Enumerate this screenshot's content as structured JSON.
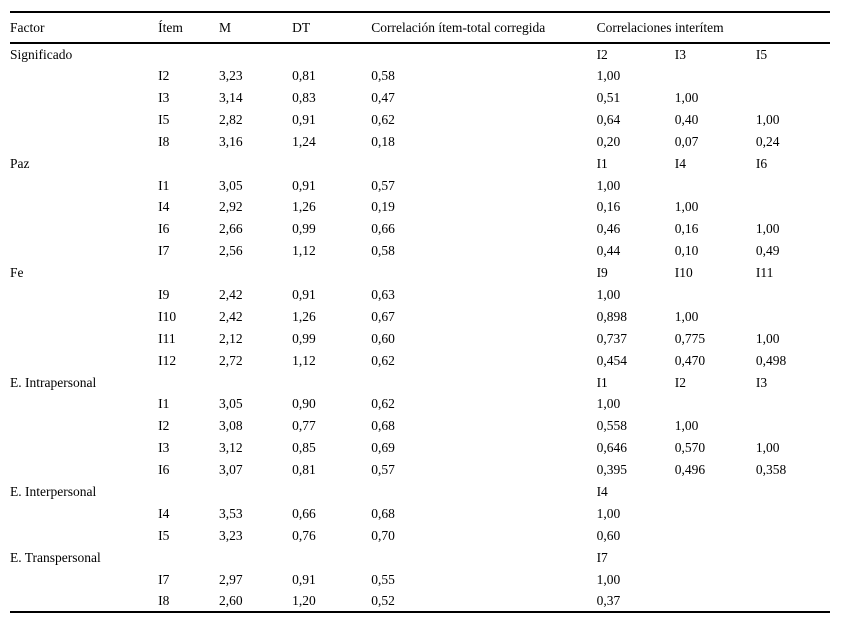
{
  "table": {
    "headers": {
      "factor": "Factor",
      "item": "Ítem",
      "mean": "M",
      "sd": "DT",
      "item_total": "Correlación ítem-total corregida",
      "interitem": "Correlaciones interítem"
    },
    "rows": [
      {
        "type": "section",
        "factor": "Significado",
        "inter": [
          "I2",
          "I3",
          "I5"
        ]
      },
      {
        "type": "item",
        "item": "I2",
        "m": "3,23",
        "dt": "0,81",
        "corr": "0,58",
        "inter": [
          "1,00",
          "",
          ""
        ]
      },
      {
        "type": "item",
        "item": "I3",
        "m": "3,14",
        "dt": "0,83",
        "corr": "0,47",
        "inter": [
          "0,51",
          "1,00",
          ""
        ]
      },
      {
        "type": "item",
        "item": "I5",
        "m": "2,82",
        "dt": "0,91",
        "corr": "0,62",
        "inter": [
          "0,64",
          "0,40",
          "1,00"
        ]
      },
      {
        "type": "item",
        "item": "I8",
        "m": "3,16",
        "dt": "1,24",
        "corr": "0,18",
        "inter": [
          "0,20",
          "0,07",
          "0,24"
        ]
      },
      {
        "type": "section",
        "factor": "Paz",
        "inter": [
          "I1",
          "I4",
          "I6"
        ]
      },
      {
        "type": "item",
        "item": "I1",
        "m": "3,05",
        "dt": "0,91",
        "corr": "0,57",
        "inter": [
          "1,00",
          "",
          ""
        ]
      },
      {
        "type": "item",
        "item": "I4",
        "m": "2,92",
        "dt": "1,26",
        "corr": "0,19",
        "inter": [
          "0,16",
          "1,00",
          ""
        ]
      },
      {
        "type": "item",
        "item": "I6",
        "m": "2,66",
        "dt": "0,99",
        "corr": "0,66",
        "inter": [
          "0,46",
          "0,16",
          "1,00"
        ]
      },
      {
        "type": "item",
        "item": "I7",
        "m": "2,56",
        "dt": "1,12",
        "corr": "0,58",
        "inter": [
          "0,44",
          "0,10",
          "0,49"
        ]
      },
      {
        "type": "section",
        "factor": "Fe",
        "inter": [
          "I9",
          "I10",
          "I11"
        ]
      },
      {
        "type": "item",
        "item": "I9",
        "m": "2,42",
        "dt": "0,91",
        "corr": "0,63",
        "inter": [
          "1,00",
          "",
          ""
        ]
      },
      {
        "type": "item",
        "item": "I10",
        "m": "2,42",
        "dt": "1,26",
        "corr": "0,67",
        "inter": [
          "0,898",
          "1,00",
          ""
        ]
      },
      {
        "type": "item",
        "item": "I11",
        "m": "2,12",
        "dt": "0,99",
        "corr": "0,60",
        "inter": [
          "0,737",
          "0,775",
          "1,00"
        ]
      },
      {
        "type": "item",
        "item": "I12",
        "m": "2,72",
        "dt": "1,12",
        "corr": "0,62",
        "inter": [
          "0,454",
          "0,470",
          "0,498"
        ]
      },
      {
        "type": "section",
        "factor": "E. Intrapersonal",
        "inter": [
          "I1",
          "I2",
          "I3"
        ]
      },
      {
        "type": "item",
        "item": "I1",
        "m": "3,05",
        "dt": "0,90",
        "corr": "0,62",
        "inter": [
          "1,00",
          "",
          ""
        ]
      },
      {
        "type": "item",
        "item": "I2",
        "m": "3,08",
        "dt": "0,77",
        "corr": "0,68",
        "inter": [
          "0,558",
          "1,00",
          ""
        ]
      },
      {
        "type": "item",
        "item": "I3",
        "m": "3,12",
        "dt": "0,85",
        "corr": "0,69",
        "inter": [
          "0,646",
          "0,570",
          "1,00"
        ]
      },
      {
        "type": "item",
        "item": "I6",
        "m": "3,07",
        "dt": "0,81",
        "corr": "0,57",
        "inter": [
          "0,395",
          "0,496",
          "0,358"
        ]
      },
      {
        "type": "section",
        "factor": "E. Interpersonal",
        "inter": [
          "I4",
          "",
          ""
        ]
      },
      {
        "type": "item",
        "item": "I4",
        "m": "3,53",
        "dt": "0,66",
        "corr": "0,68",
        "inter": [
          "1,00",
          "",
          ""
        ]
      },
      {
        "type": "item",
        "item": "I5",
        "m": "3,23",
        "dt": "0,76",
        "corr": "0,70",
        "inter": [
          "0,60",
          "",
          ""
        ]
      },
      {
        "type": "section",
        "factor": "E. Transpersonal",
        "inter": [
          "I7",
          "",
          ""
        ]
      },
      {
        "type": "item",
        "item": "I7",
        "m": "2,97",
        "dt": "0,91",
        "corr": "0,55",
        "inter": [
          "1,00",
          "",
          ""
        ]
      },
      {
        "type": "item",
        "item": "I8",
        "m": "2,60",
        "dt": "1,20",
        "corr": "0,52",
        "inter": [
          "0,37",
          "",
          ""
        ]
      }
    ]
  }
}
